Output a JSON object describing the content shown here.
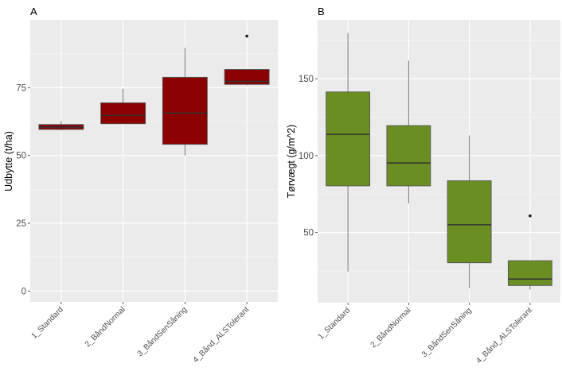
{
  "chart_data": [
    {
      "type": "boxplot",
      "panel_label": "A",
      "title": "",
      "xlabel": "",
      "ylabel": "Udbytte (t/ha)",
      "ylim": [
        -4,
        100
      ],
      "yticks": [
        0,
        25,
        50,
        75
      ],
      "yminor": [
        12.5,
        37.5,
        62.5,
        87.5
      ],
      "grid": true,
      "fill_color": "#8B0000",
      "categories": [
        "1_Standard",
        "2_BåndNormal",
        "3_BåndSenSåning",
        "4_Bånd_ALSTolerant"
      ],
      "boxes": [
        {
          "category": "1_Standard",
          "whisker_low": 59.3,
          "q1": 59.6,
          "median": 60.4,
          "q3": 61.4,
          "whisker_high": 62.7,
          "outliers": []
        },
        {
          "category": "2_BåndNormal",
          "whisker_low": 61.7,
          "q1": 61.7,
          "median": 64.8,
          "q3": 69.4,
          "whisker_high": 74.6,
          "outliers": []
        },
        {
          "category": "3_BåndSenSåning",
          "whisker_low": 50.0,
          "q1": 54.1,
          "median": 65.6,
          "q3": 78.8,
          "whisker_high": 89.7,
          "outliers": []
        },
        {
          "category": "4_Bånd_ALSTolerant",
          "whisker_low": 75.8,
          "q1": 76.2,
          "median": 77.3,
          "q3": 81.7,
          "whisker_high": 81.7,
          "outliers": [
            94.0
          ]
        }
      ]
    },
    {
      "type": "boxplot",
      "panel_label": "B",
      "title": "",
      "xlabel": "",
      "ylabel": "Tørvægt (g/m^2)",
      "ylim": [
        4.3,
        188.3
      ],
      "yticks": [
        50,
        100,
        150
      ],
      "yminor": [
        25,
        75,
        125,
        175
      ],
      "grid": true,
      "fill_color": "#6B8E23",
      "categories": [
        "1_Standard",
        "2_BåndNormal",
        "3_BåndSenSåning",
        "4_Bånd_ALSTolerant"
      ],
      "boxes": [
        {
          "category": "1_Standard",
          "whisker_low": 24.6,
          "q1": 80.3,
          "median": 113.8,
          "q3": 141.4,
          "whisker_high": 179.8,
          "outliers": []
        },
        {
          "category": "2_BåndNormal",
          "whisker_low": 69.0,
          "q1": 80.3,
          "median": 95.2,
          "q3": 119.5,
          "whisker_high": 161.7,
          "outliers": []
        },
        {
          "category": "3_BåndSenSåning",
          "whisker_low": 13.8,
          "q1": 30.3,
          "median": 55.0,
          "q3": 83.6,
          "whisker_high": 113.1,
          "outliers": []
        },
        {
          "category": "4_Bånd_ALSTolerant",
          "whisker_low": 12.9,
          "q1": 15.5,
          "median": 19.7,
          "q3": 31.6,
          "whisker_high": 31.6,
          "outliers": [
            60.8
          ]
        }
      ]
    }
  ],
  "colors": {
    "panel_background": "#EBEBEB",
    "grid_major": "#FFFFFF",
    "box_outline": "#555555",
    "median_line": "#333333",
    "whisker": "#777777",
    "outlier": "#1a1a1a"
  }
}
